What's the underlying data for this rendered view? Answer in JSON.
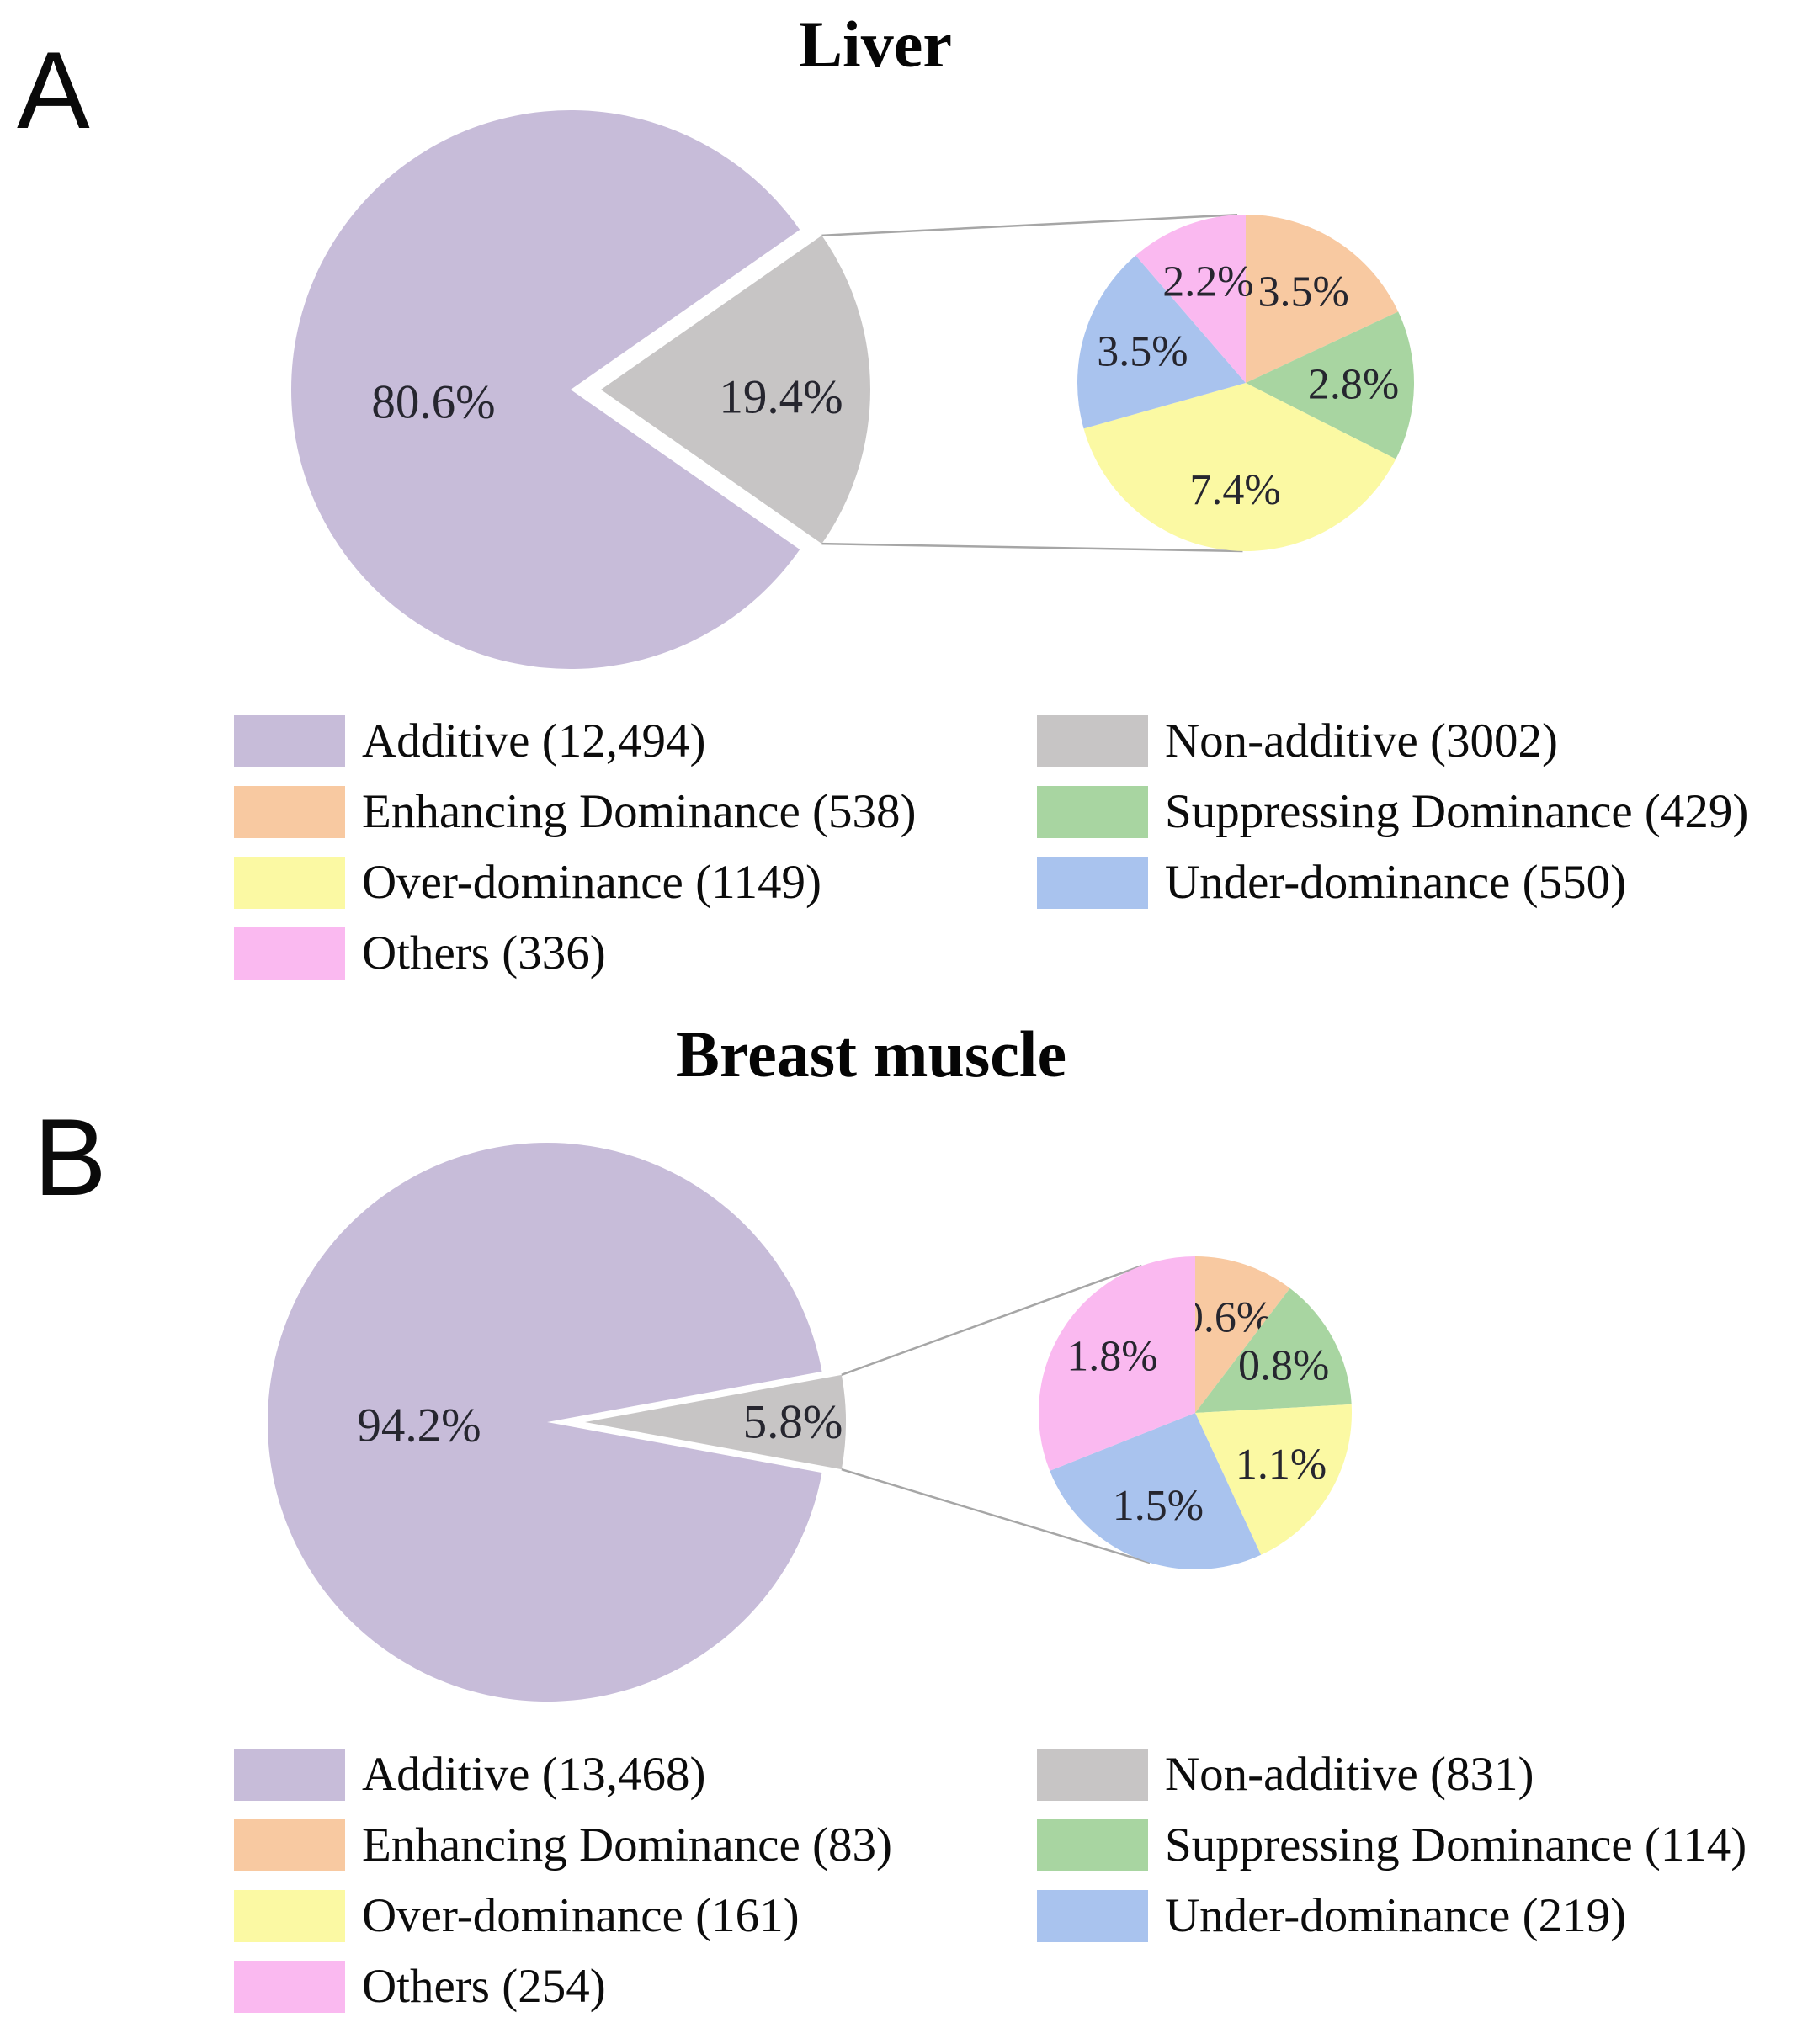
{
  "colors": {
    "additive": "#C7BCD9",
    "non_additive": "#C7C5C5",
    "enhancing_dominance": "#F8C9A1",
    "suppressing_dominance": "#A8D5A1",
    "over_dominance": "#FBF9A3",
    "under_dominance": "#A9C3EE",
    "others": "#FAB9F0",
    "callout_line": "#A6A6A6",
    "pct_text": "#26262F",
    "title_text": "#050505"
  },
  "chart_data": [
    {
      "type": "pie",
      "panel": "A",
      "title": "Liver",
      "main": {
        "categories": [
          "Additive",
          "Non-additive"
        ],
        "values_pct": [
          80.6,
          19.4
        ],
        "counts": [
          12494,
          3002
        ],
        "labels": [
          "80.6%",
          "19.4%"
        ],
        "colors": [
          "#C7BCD9",
          "#C7C5C5"
        ],
        "exploded_slice": "Non-additive"
      },
      "breakout": {
        "source": "Non-additive",
        "categories": [
          "Enhancing Dominance",
          "Suppressing Dominance",
          "Over-dominance",
          "Under-dominance",
          "Others"
        ],
        "values_pct": [
          3.5,
          2.8,
          7.4,
          3.5,
          2.2
        ],
        "counts": [
          538,
          429,
          1149,
          550,
          336
        ],
        "labels": [
          "3.5%",
          "2.8%",
          "7.4%",
          "3.5%",
          "2.2%"
        ],
        "colors": [
          "#F8C9A1",
          "#A8D5A1",
          "#FBF9A3",
          "#A9C3EE",
          "#FAB9F0"
        ],
        "start_angle": "12-oclock",
        "direction": "clockwise"
      },
      "legend_left": [
        {
          "label": "Additive (12,494)",
          "color": "#C7BCD9"
        },
        {
          "label": "Enhancing Dominance (538)",
          "color": "#F8C9A1"
        },
        {
          "label": "Over-dominance (1149)",
          "color": "#FBF9A3"
        },
        {
          "label": "Others (336)",
          "color": "#FAB9F0"
        }
      ],
      "legend_right": [
        {
          "label": "Non-additive (3002)",
          "color": "#C7C5C5"
        },
        {
          "label": "Suppressing Dominance (429)",
          "color": "#A8D5A1"
        },
        {
          "label": "Under-dominance (550)",
          "color": "#A9C3EE"
        }
      ]
    },
    {
      "type": "pie",
      "panel": "B",
      "title": "Breast muscle",
      "main": {
        "categories": [
          "Additive",
          "Non-additive"
        ],
        "values_pct": [
          94.2,
          5.8
        ],
        "counts": [
          13468,
          831
        ],
        "labels": [
          "94.2%",
          "5.8%"
        ],
        "colors": [
          "#C7BCD9",
          "#C7C5C5"
        ],
        "exploded_slice": "Non-additive"
      },
      "breakout": {
        "source": "Non-additive",
        "categories": [
          "Enhancing Dominance",
          "Suppressing Dominance",
          "Over-dominance",
          "Under-dominance",
          "Others"
        ],
        "values_pct": [
          0.6,
          0.8,
          1.1,
          1.5,
          1.8
        ],
        "counts": [
          83,
          114,
          161,
          219,
          254
        ],
        "labels": [
          "0.6%",
          "0.8%",
          "1.1%",
          "1.5%",
          "1.8%"
        ],
        "colors": [
          "#F8C9A1",
          "#A8D5A1",
          "#FBF9A3",
          "#A9C3EE",
          "#FAB9F0"
        ],
        "start_angle": "12-oclock",
        "direction": "clockwise"
      },
      "legend_left": [
        {
          "label": "Additive (13,468)",
          "color": "#C7BCD9"
        },
        {
          "label": "Enhancing Dominance (83)",
          "color": "#F8C9A1"
        },
        {
          "label": "Over-dominance (161)",
          "color": "#FBF9A3"
        },
        {
          "label": "Others (254)",
          "color": "#FAB9F0"
        }
      ],
      "legend_right": [
        {
          "label": "Non-additive (831)",
          "color": "#C7C5C5"
        },
        {
          "label": "Suppressing Dominance (114)",
          "color": "#A8D5A1"
        },
        {
          "label": "Under-dominance (219)",
          "color": "#A9C3EE"
        }
      ]
    }
  ]
}
